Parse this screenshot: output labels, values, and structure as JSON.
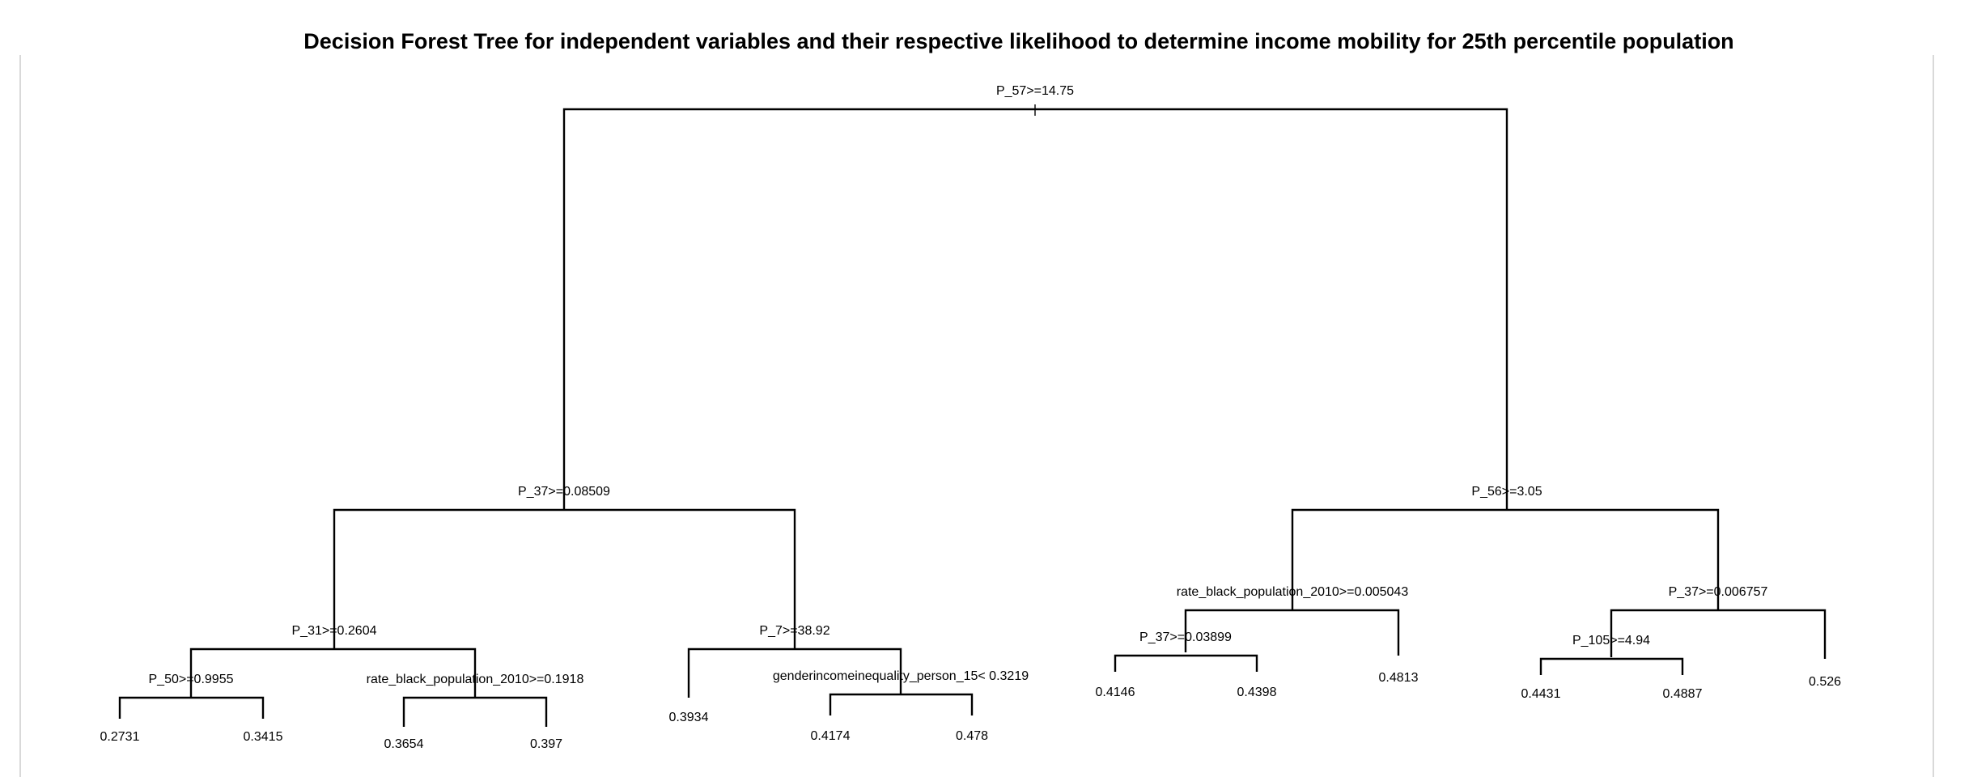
{
  "title": "Decision Forest Tree for independent variables and their respective likelihood to determine income mobility for 25th percentile population",
  "tree": {
    "split": "P_57>=14.75",
    "left": {
      "split": "P_37>=0.08509",
      "left": {
        "split": "P_31>=0.2604",
        "left": {
          "split": "P_50>=0.9955",
          "left": {
            "value": "0.2731"
          },
          "right": {
            "value": "0.3415"
          }
        },
        "right": {
          "split": "rate_black_population_2010>=0.1918",
          "left": {
            "value": "0.3654"
          },
          "right": {
            "value": "0.397"
          }
        }
      },
      "right": {
        "split": "P_7>=38.92",
        "left": {
          "value": "0.3934"
        },
        "right": {
          "split": "genderincomeinequality_person_15< 0.3219",
          "left": {
            "value": "0.4174"
          },
          "right": {
            "value": "0.478"
          }
        }
      }
    },
    "right": {
      "split": "P_56>=3.05",
      "left": {
        "split": "rate_black_population_2010>=0.005043",
        "left": {
          "split": "P_37>=0.03899",
          "left": {
            "value": "0.4146"
          },
          "right": {
            "value": "0.4398"
          }
        },
        "right": {
          "value": "0.4813"
        }
      },
      "right": {
        "split": "P_37>=0.006757",
        "left": {
          "split": "P_105>=4.94",
          "left": {
            "value": "0.4431"
          },
          "right": {
            "value": "0.4887"
          }
        },
        "right": {
          "value": "0.526"
        }
      }
    }
  }
}
